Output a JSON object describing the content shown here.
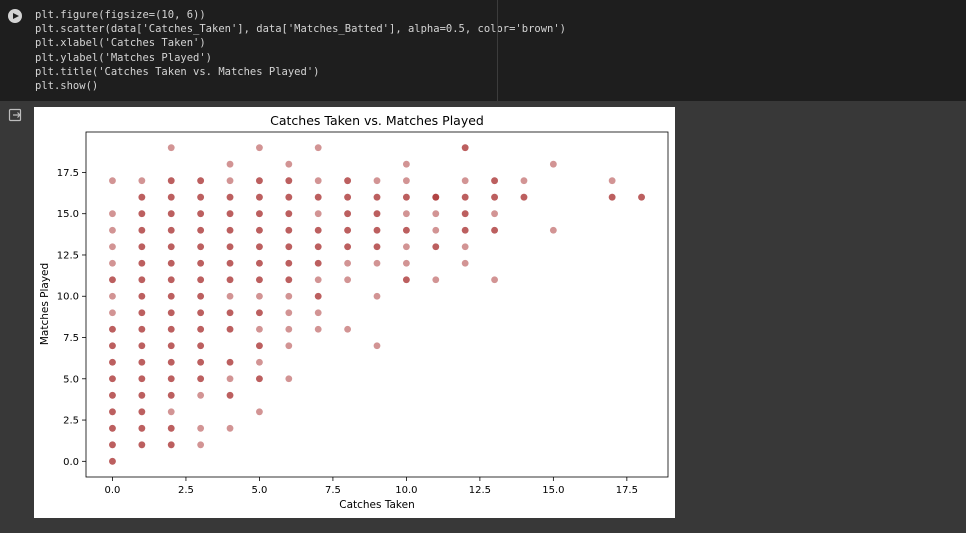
{
  "code_cell": {
    "lines": [
      "plt.figure(figsize=(10, 6))",
      "plt.scatter(data['Catches_Taken'], data['Matches_Batted'], alpha=0.5, color='brown')",
      "plt.xlabel('Catches Taken')",
      "plt.ylabel('Matches Played')",
      "plt.title('Catches Taken vs. Matches Played')",
      "plt.show()"
    ]
  },
  "chart_data": {
    "type": "scatter",
    "title": "Catches Taken vs. Matches Played",
    "xlabel": "Catches Taken",
    "ylabel": "Matches Played",
    "xlim": [
      -0.9,
      18.9
    ],
    "ylim": [
      -0.95,
      19.95
    ],
    "xticks": [
      "0.0",
      "2.5",
      "5.0",
      "7.5",
      "10.0",
      "12.5",
      "15.0",
      "17.5"
    ],
    "yticks": [
      "0.0",
      "2.5",
      "5.0",
      "7.5",
      "10.0",
      "12.5",
      "15.0",
      "17.5"
    ],
    "marker_color": "#a52a2a",
    "alpha": 0.5,
    "grid": false,
    "points": [
      [
        0,
        0
      ],
      [
        0,
        0
      ],
      [
        0,
        1
      ],
      [
        0,
        1
      ],
      [
        0,
        2
      ],
      [
        0,
        2
      ],
      [
        0,
        3
      ],
      [
        0,
        3
      ],
      [
        0,
        4
      ],
      [
        0,
        4
      ],
      [
        0,
        5
      ],
      [
        0,
        5
      ],
      [
        0,
        6
      ],
      [
        0,
        6
      ],
      [
        0,
        7
      ],
      [
        0,
        7
      ],
      [
        0,
        8
      ],
      [
        0,
        8
      ],
      [
        0,
        9
      ],
      [
        0,
        10
      ],
      [
        0,
        11
      ],
      [
        0,
        11
      ],
      [
        0,
        12
      ],
      [
        0,
        13
      ],
      [
        0,
        14
      ],
      [
        0,
        15
      ],
      [
        0,
        17
      ],
      [
        1,
        1
      ],
      [
        1,
        1
      ],
      [
        1,
        2
      ],
      [
        1,
        2
      ],
      [
        1,
        3
      ],
      [
        1,
        3
      ],
      [
        1,
        4
      ],
      [
        1,
        4
      ],
      [
        1,
        5
      ],
      [
        1,
        5
      ],
      [
        1,
        6
      ],
      [
        1,
        6
      ],
      [
        1,
        7
      ],
      [
        1,
        7
      ],
      [
        1,
        8
      ],
      [
        1,
        8
      ],
      [
        1,
        9
      ],
      [
        1,
        9
      ],
      [
        1,
        10
      ],
      [
        1,
        10
      ],
      [
        1,
        11
      ],
      [
        1,
        11
      ],
      [
        1,
        12
      ],
      [
        1,
        12
      ],
      [
        1,
        13
      ],
      [
        1,
        13
      ],
      [
        1,
        14
      ],
      [
        1,
        14
      ],
      [
        1,
        15
      ],
      [
        1,
        15
      ],
      [
        1,
        16
      ],
      [
        1,
        16
      ],
      [
        1,
        17
      ],
      [
        2,
        1
      ],
      [
        2,
        1
      ],
      [
        2,
        2
      ],
      [
        2,
        2
      ],
      [
        2,
        3
      ],
      [
        2,
        4
      ],
      [
        2,
        4
      ],
      [
        2,
        5
      ],
      [
        2,
        5
      ],
      [
        2,
        6
      ],
      [
        2,
        6
      ],
      [
        2,
        7
      ],
      [
        2,
        7
      ],
      [
        2,
        8
      ],
      [
        2,
        8
      ],
      [
        2,
        9
      ],
      [
        2,
        9
      ],
      [
        2,
        10
      ],
      [
        2,
        10
      ],
      [
        2,
        11
      ],
      [
        2,
        11
      ],
      [
        2,
        12
      ],
      [
        2,
        12
      ],
      [
        2,
        13
      ],
      [
        2,
        13
      ],
      [
        2,
        14
      ],
      [
        2,
        14
      ],
      [
        2,
        15
      ],
      [
        2,
        15
      ],
      [
        2,
        16
      ],
      [
        2,
        16
      ],
      [
        2,
        17
      ],
      [
        2,
        17
      ],
      [
        2,
        19
      ],
      [
        3,
        1
      ],
      [
        3,
        2
      ],
      [
        3,
        4
      ],
      [
        3,
        5
      ],
      [
        3,
        5
      ],
      [
        3,
        6
      ],
      [
        3,
        6
      ],
      [
        3,
        7
      ],
      [
        3,
        7
      ],
      [
        3,
        8
      ],
      [
        3,
        8
      ],
      [
        3,
        9
      ],
      [
        3,
        9
      ],
      [
        3,
        10
      ],
      [
        3,
        10
      ],
      [
        3,
        11
      ],
      [
        3,
        11
      ],
      [
        3,
        12
      ],
      [
        3,
        12
      ],
      [
        3,
        13
      ],
      [
        3,
        13
      ],
      [
        3,
        14
      ],
      [
        3,
        14
      ],
      [
        3,
        15
      ],
      [
        3,
        15
      ],
      [
        3,
        16
      ],
      [
        3,
        16
      ],
      [
        3,
        17
      ],
      [
        3,
        17
      ],
      [
        4,
        2
      ],
      [
        4,
        4
      ],
      [
        4,
        4
      ],
      [
        4,
        5
      ],
      [
        4,
        6
      ],
      [
        4,
        6
      ],
      [
        4,
        8
      ],
      [
        4,
        8
      ],
      [
        4,
        9
      ],
      [
        4,
        9
      ],
      [
        4,
        10
      ],
      [
        4,
        11
      ],
      [
        4,
        11
      ],
      [
        4,
        12
      ],
      [
        4,
        12
      ],
      [
        4,
        13
      ],
      [
        4,
        13
      ],
      [
        4,
        14
      ],
      [
        4,
        14
      ],
      [
        4,
        15
      ],
      [
        4,
        15
      ],
      [
        4,
        16
      ],
      [
        4,
        16
      ],
      [
        4,
        17
      ],
      [
        4,
        18
      ],
      [
        5,
        3
      ],
      [
        5,
        5
      ],
      [
        5,
        5
      ],
      [
        5,
        6
      ],
      [
        5,
        7
      ],
      [
        5,
        7
      ],
      [
        5,
        8
      ],
      [
        5,
        9
      ],
      [
        5,
        9
      ],
      [
        5,
        10
      ],
      [
        5,
        11
      ],
      [
        5,
        11
      ],
      [
        5,
        12
      ],
      [
        5,
        12
      ],
      [
        5,
        13
      ],
      [
        5,
        13
      ],
      [
        5,
        14
      ],
      [
        5,
        14
      ],
      [
        5,
        15
      ],
      [
        5,
        15
      ],
      [
        5,
        16
      ],
      [
        5,
        16
      ],
      [
        5,
        17
      ],
      [
        5,
        17
      ],
      [
        5,
        19
      ],
      [
        6,
        5
      ],
      [
        6,
        7
      ],
      [
        6,
        8
      ],
      [
        6,
        9
      ],
      [
        6,
        10
      ],
      [
        6,
        11
      ],
      [
        6,
        11
      ],
      [
        6,
        12
      ],
      [
        6,
        12
      ],
      [
        6,
        13
      ],
      [
        6,
        13
      ],
      [
        6,
        14
      ],
      [
        6,
        14
      ],
      [
        6,
        15
      ],
      [
        6,
        15
      ],
      [
        6,
        16
      ],
      [
        6,
        16
      ],
      [
        6,
        17
      ],
      [
        6,
        17
      ],
      [
        6,
        18
      ],
      [
        7,
        8
      ],
      [
        7,
        9
      ],
      [
        7,
        10
      ],
      [
        7,
        10
      ],
      [
        7,
        11
      ],
      [
        7,
        12
      ],
      [
        7,
        12
      ],
      [
        7,
        13
      ],
      [
        7,
        13
      ],
      [
        7,
        14
      ],
      [
        7,
        14
      ],
      [
        7,
        15
      ],
      [
        7,
        16
      ],
      [
        7,
        16
      ],
      [
        7,
        17
      ],
      [
        7,
        19
      ],
      [
        8,
        8
      ],
      [
        8,
        11
      ],
      [
        8,
        12
      ],
      [
        8,
        13
      ],
      [
        8,
        13
      ],
      [
        8,
        14
      ],
      [
        8,
        14
      ],
      [
        8,
        15
      ],
      [
        8,
        15
      ],
      [
        8,
        16
      ],
      [
        8,
        16
      ],
      [
        8,
        17
      ],
      [
        8,
        17
      ],
      [
        9,
        7
      ],
      [
        9,
        10
      ],
      [
        9,
        12
      ],
      [
        9,
        13
      ],
      [
        9,
        13
      ],
      [
        9,
        14
      ],
      [
        9,
        14
      ],
      [
        9,
        15
      ],
      [
        9,
        15
      ],
      [
        9,
        16
      ],
      [
        9,
        16
      ],
      [
        9,
        17
      ],
      [
        10,
        11
      ],
      [
        10,
        11
      ],
      [
        10,
        12
      ],
      [
        10,
        13
      ],
      [
        10,
        14
      ],
      [
        10,
        14
      ],
      [
        10,
        15
      ],
      [
        10,
        16
      ],
      [
        10,
        16
      ],
      [
        10,
        17
      ],
      [
        10,
        18
      ],
      [
        11,
        11
      ],
      [
        11,
        13
      ],
      [
        11,
        13
      ],
      [
        11,
        14
      ],
      [
        11,
        15
      ],
      [
        11,
        16
      ],
      [
        11,
        16
      ],
      [
        11,
        16
      ],
      [
        12,
        12
      ],
      [
        12,
        13
      ],
      [
        12,
        14
      ],
      [
        12,
        14
      ],
      [
        12,
        15
      ],
      [
        12,
        15
      ],
      [
        12,
        16
      ],
      [
        12,
        16
      ],
      [
        12,
        17
      ],
      [
        12,
        19
      ],
      [
        12,
        19
      ],
      [
        13,
        11
      ],
      [
        13,
        14
      ],
      [
        13,
        14
      ],
      [
        13,
        15
      ],
      [
        13,
        16
      ],
      [
        13,
        16
      ],
      [
        13,
        17
      ],
      [
        13,
        17
      ],
      [
        14,
        16
      ],
      [
        14,
        16
      ],
      [
        14,
        17
      ],
      [
        15,
        14
      ],
      [
        15,
        18
      ],
      [
        17,
        16
      ],
      [
        17,
        16
      ],
      [
        17,
        17
      ],
      [
        18,
        16
      ],
      [
        18,
        16
      ]
    ]
  }
}
